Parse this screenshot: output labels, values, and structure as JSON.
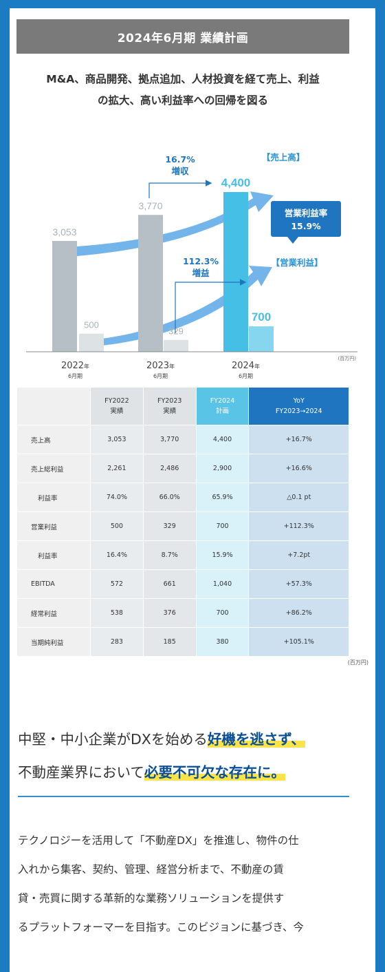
{
  "banner": "2024年6月期 業績計画",
  "subtitle": {
    "line1": "M&A、商品開発、拠点追加、人材投資を経て売上、利益",
    "line2": "の拡大、高い利益率への回帰を図る"
  },
  "chart_data": {
    "type": "bar",
    "categories": [
      "2022年6月期",
      "2023年6月期",
      "2024年6月期"
    ],
    "category_year": [
      "2022",
      "2023",
      "2024"
    ],
    "category_suffix": "年",
    "category_sub": "6月期",
    "series": [
      {
        "name": "売上高",
        "values": [
          3053,
          3770,
          4400
        ],
        "labels": [
          "3,053",
          "3,770",
          "4,400"
        ]
      },
      {
        "name": "営業利益",
        "values": [
          500,
          329,
          700
        ],
        "labels": [
          "500",
          "329",
          "700"
        ]
      }
    ],
    "unit": "(百万円)",
    "ylim": [
      0,
      4400
    ],
    "legend": {
      "sales": "【売上高】",
      "op_profit": "【営業利益】"
    },
    "callouts": {
      "sales_growth_pct": "16.7%",
      "sales_growth_word": "増収",
      "profit_growth_pct": "112.3%",
      "profit_growth_word": "増益",
      "margin_label": "営業利益率",
      "margin_value": "15.9%"
    },
    "colors": {
      "past_sales": "#b6bfc5",
      "past_profit": "#dde2e5",
      "plan_sales": "#45bfe5",
      "plan_profit": "#86d6ef",
      "arrow": "#5aa8e8",
      "accent": "#1f75bf"
    }
  },
  "table": {
    "headers": [
      {
        "line1": "",
        "line2": ""
      },
      {
        "line1": "FY2022",
        "line2": "実績"
      },
      {
        "line1": "FY2023",
        "line2": "実績"
      },
      {
        "line1": "FY2024",
        "line2": "計画"
      },
      {
        "line1": "YoY",
        "line2": "FY2023→2024"
      }
    ],
    "rows": [
      {
        "label": "売上高",
        "fy22": "3,053",
        "fy23": "3,770",
        "fy24": "4,400",
        "yoy": "+16.7%"
      },
      {
        "label": "売上総利益",
        "fy22": "2,261",
        "fy23": "2,486",
        "fy24": "2,900",
        "yoy": "+16.6%"
      },
      {
        "label": "利益率",
        "fy22": "74.0%",
        "fy23": "66.0%",
        "fy24": "65.9%",
        "yoy": "△0.1 pt"
      },
      {
        "label": "営業利益",
        "fy22": "500",
        "fy23": "329",
        "fy24": "700",
        "yoy": "+112.3%"
      },
      {
        "label": "利益率",
        "fy22": "16.4%",
        "fy23": "8.7%",
        "fy24": "15.9%",
        "yoy": "+7.2pt"
      },
      {
        "label": "EBITDA",
        "fy22": "572",
        "fy23": "661",
        "fy24": "1,040",
        "yoy": "+57.3%"
      },
      {
        "label": "経常利益",
        "fy22": "538",
        "fy23": "376",
        "fy24": "700",
        "yoy": "+86.2%"
      },
      {
        "label": "当期純利益",
        "fy22": "283",
        "fy23": "185",
        "fy24": "380",
        "yoy": "+105.1%"
      }
    ],
    "unit": "(百万円)"
  },
  "lead": {
    "l1_plain": "中堅・中小企業がDXを始める",
    "l1_hl": "好機を逃さず、",
    "l2_plain": "不動産業界において",
    "l2_hl": "必要不可欠な存在に。"
  },
  "body": {
    "lines": [
      "テクノロジーを活用して「不動産DX」を推進し、物件の仕",
      "入れから集客、契約、管理、経営分析まで、不動産の賃",
      "貸・売買に関する革新的な業務ソリューションを提供す",
      "るプラットフォーマーを目指す。このビジョンに基づき、今"
    ]
  }
}
